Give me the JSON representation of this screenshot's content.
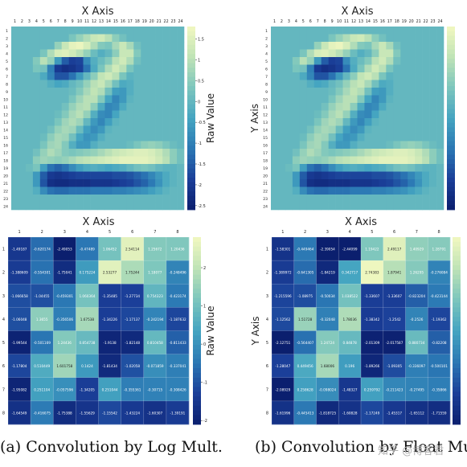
{
  "captions": {
    "a": "(a) Convolution by Log Mult.",
    "b": "(b) Convolution by Float Mult."
  },
  "watermark": "知乎 @博客君",
  "colors": {
    "c0": "#0b1f6e",
    "c1": "#1b3f99",
    "c2": "#2b78b4",
    "c3": "#45a5c1",
    "c4": "#7dc6bd",
    "c5": "#bfe3b6",
    "c6": "#f2f8c0"
  },
  "chart_data": [
    {
      "type": "heatmap",
      "panel": "a-top",
      "xlabel": "X Axis",
      "ylabel": "",
      "colorbar_label": "Raw Value",
      "x_ticks": [
        "1",
        "2",
        "3",
        "4",
        "5",
        "6",
        "7",
        "8",
        "9",
        "10",
        "11",
        "12",
        "13",
        "14",
        "15",
        "16",
        "17",
        "18",
        "19",
        "20",
        "21",
        "22",
        "23",
        "24"
      ],
      "y_ticks": [
        "1",
        "2",
        "3",
        "4",
        "5",
        "6",
        "7",
        "8",
        "9",
        "10",
        "11",
        "12",
        "13",
        "14",
        "15",
        "16",
        "17",
        "18",
        "19",
        "20",
        "21",
        "22",
        "23",
        "24"
      ],
      "colorbar_ticks": [
        "1.5",
        "1",
        "0.5",
        "0",
        "-0.5",
        "-1",
        "-1.5",
        "-2",
        "-2.5"
      ],
      "vmin": -2.6,
      "vmax": 1.8,
      "values": [
        [
          0,
          0,
          0,
          0,
          0,
          0,
          0,
          0,
          0,
          0,
          0,
          0,
          0,
          0,
          0,
          0,
          0,
          0,
          0,
          0,
          0,
          0,
          0,
          0
        ],
        [
          0,
          0,
          0,
          0,
          0,
          0,
          0,
          0,
          0.3,
          0.6,
          0.9,
          1.2,
          1.3,
          1.0,
          0.5,
          0.2,
          0,
          0,
          0,
          0,
          0,
          0,
          0,
          0
        ],
        [
          0,
          0,
          0,
          0,
          0,
          0,
          0.6,
          1.2,
          1.6,
          1.7,
          1.4,
          0.9,
          0.4,
          0.3,
          0.8,
          1.2,
          0.8,
          0.2,
          0,
          0,
          0,
          0,
          0,
          0
        ],
        [
          0,
          0,
          0,
          0,
          0.3,
          0.9,
          1.4,
          1.5,
          1.3,
          1.0,
          0.6,
          0.1,
          -0.2,
          0,
          0.5,
          1.2,
          1.2,
          0.4,
          0,
          0,
          0,
          0,
          0,
          0
        ],
        [
          0,
          0,
          0,
          0.4,
          1.0,
          0.6,
          -0.6,
          -1.5,
          -1.9,
          -1.8,
          -0.8,
          -0.2,
          0.1,
          0.4,
          1.0,
          1.3,
          0.9,
          0.2,
          0,
          0,
          0,
          0,
          0,
          0
        ],
        [
          0,
          0,
          0,
          0.3,
          0.2,
          -1.0,
          -2.0,
          -2.2,
          -2.1,
          -1.9,
          -1.2,
          -0.3,
          0.3,
          0.9,
          1.3,
          1.0,
          0.3,
          0,
          0,
          0,
          0,
          0,
          0,
          0
        ],
        [
          0,
          0,
          0,
          0,
          -0.3,
          -0.9,
          -1.6,
          -1.6,
          -1.2,
          -0.6,
          0,
          0.5,
          1.1,
          1.3,
          1.0,
          0.3,
          -0.1,
          0,
          0,
          0,
          0,
          0,
          0,
          0
        ],
        [
          0,
          0,
          0,
          0,
          0,
          -0.2,
          -0.4,
          -0.3,
          0,
          0.2,
          0.6,
          1.0,
          1.2,
          0.8,
          0.2,
          -0.3,
          -0.2,
          0,
          0,
          0,
          0,
          0,
          0,
          0
        ],
        [
          0,
          0,
          0,
          0,
          0,
          0,
          0,
          0,
          0.1,
          0.4,
          0.8,
          1.1,
          0.9,
          0.2,
          -0.5,
          -0.6,
          -0.2,
          0,
          0,
          0,
          0,
          0,
          0,
          0
        ],
        [
          0,
          0,
          0,
          0,
          0,
          0,
          0,
          0,
          0.3,
          0.7,
          1.0,
          1.0,
          0.4,
          -0.4,
          -0.9,
          -0.6,
          -0.1,
          0,
          0,
          0,
          0,
          0,
          0,
          0
        ],
        [
          0,
          0,
          0,
          0,
          0,
          0,
          0,
          0.2,
          0.6,
          0.9,
          1.0,
          0.5,
          -0.3,
          -0.9,
          -0.8,
          -0.3,
          0,
          0,
          0,
          0,
          0,
          0,
          0,
          0
        ],
        [
          0,
          0,
          0,
          0,
          0,
          0,
          0.1,
          0.4,
          0.8,
          1.0,
          0.6,
          -0.2,
          -0.8,
          -0.9,
          -0.4,
          0,
          0,
          0,
          0,
          0,
          0,
          0,
          0,
          0
        ],
        [
          0,
          0,
          0,
          0,
          0,
          0,
          0.3,
          0.7,
          0.9,
          0.7,
          0,
          -0.6,
          -0.9,
          -0.5,
          -0.1,
          0,
          0,
          0,
          0,
          0,
          0,
          0,
          0,
          0
        ],
        [
          0,
          0,
          0,
          0,
          0,
          0.2,
          0.6,
          0.8,
          0.7,
          0.1,
          -0.5,
          -0.8,
          -0.6,
          -0.1,
          0,
          0,
          0,
          0,
          0,
          0,
          0,
          0,
          0,
          0
        ],
        [
          0,
          0,
          0,
          0,
          0.1,
          0.5,
          0.8,
          0.7,
          0.2,
          -0.4,
          -0.7,
          -0.6,
          -0.2,
          0,
          0,
          0,
          0,
          0,
          0,
          0,
          0,
          0,
          0,
          0
        ],
        [
          0,
          0,
          0,
          0,
          0.3,
          0.7,
          0.8,
          0.4,
          -0.2,
          -0.6,
          -0.6,
          -0.2,
          0,
          0,
          0,
          0,
          0.1,
          0.3,
          0.5,
          0.6,
          0.5,
          0.3,
          0.1,
          0
        ],
        [
          0,
          0,
          0,
          0.2,
          0.6,
          0.9,
          0.7,
          0.4,
          0.3,
          0.4,
          0.5,
          0.6,
          0.8,
          1.0,
          1.2,
          1.3,
          1.4,
          1.5,
          1.5,
          1.4,
          1.2,
          0.9,
          0.5,
          0.2
        ],
        [
          0,
          0,
          0,
          0.5,
          0.7,
          0.6,
          0.5,
          0.6,
          0.8,
          1.0,
          1.1,
          1.2,
          1.3,
          1.4,
          1.5,
          1.6,
          1.6,
          1.6,
          1.6,
          1.5,
          1.3,
          1.0,
          0.5,
          0.2
        ],
        [
          0,
          0,
          0.1,
          0.3,
          -0.5,
          -1.2,
          -1.4,
          -1.2,
          -0.8,
          -0.5,
          -0.3,
          -0.2,
          -0.3,
          -0.4,
          -0.3,
          -0.2,
          0,
          0.2,
          0.3,
          0.2,
          0,
          -0.1,
          -0.1,
          0
        ],
        [
          0,
          0,
          0,
          -0.6,
          -1.5,
          -2.0,
          -2.1,
          -2.0,
          -1.9,
          -1.8,
          -1.8,
          -1.8,
          -1.8,
          -1.8,
          -1.7,
          -1.7,
          -1.6,
          -1.4,
          -1.2,
          -0.9,
          -0.6,
          -0.3,
          -0.1,
          0
        ],
        [
          0,
          0,
          0,
          -0.6,
          -1.6,
          -2.2,
          -2.3,
          -2.3,
          -2.2,
          -2.2,
          -2.2,
          -2.1,
          -2.1,
          -2.1,
          -2.0,
          -1.9,
          -1.8,
          -1.6,
          -1.4,
          -1.1,
          -0.7,
          -0.3,
          -0.1,
          0
        ],
        [
          0,
          0,
          0,
          -0.2,
          -0.8,
          -1.2,
          -1.3,
          -1.3,
          -1.2,
          -1.2,
          -1.2,
          -1.1,
          -1.1,
          -1.1,
          -1.0,
          -1.0,
          -0.9,
          -0.8,
          -0.7,
          -0.5,
          -0.3,
          -0.1,
          0,
          0
        ],
        [
          0,
          0,
          0,
          0,
          0,
          0,
          0,
          0,
          0,
          0,
          0,
          0,
          0,
          0,
          0,
          0,
          0,
          0,
          0,
          0,
          0,
          0,
          0,
          0
        ],
        [
          0,
          0,
          0,
          0,
          0,
          0,
          0,
          0,
          0,
          0,
          0,
          0,
          0,
          0,
          0,
          0,
          0,
          0,
          0,
          0,
          0,
          0,
          0,
          0
        ]
      ]
    },
    {
      "type": "heatmap",
      "panel": "b-top",
      "xlabel": "X Axis",
      "ylabel": "Y Axis",
      "colorbar_label": "",
      "x_ticks": [
        "1",
        "2",
        "3",
        "4",
        "5",
        "6",
        "7",
        "8",
        "9",
        "10",
        "11",
        "12",
        "13",
        "14",
        "15",
        "16",
        "17",
        "18",
        "19",
        "20",
        "21",
        "22",
        "23",
        "24"
      ],
      "y_ticks": [
        "1",
        "2",
        "3",
        "4",
        "5",
        "6",
        "7",
        "8",
        "9",
        "10",
        "11",
        "12",
        "13",
        "14",
        "15",
        "16",
        "17",
        "18",
        "19",
        "20",
        "21",
        "22",
        "23",
        "24"
      ],
      "vmin": -2.6,
      "vmax": 1.8,
      "values_same_as": "a-top"
    },
    {
      "type": "heatmap",
      "panel": "a-bottom",
      "xlabel": "X Axis",
      "ylabel": "",
      "colorbar_label": "Raw Value",
      "x_ticks": [
        "1",
        "2",
        "3",
        "4",
        "5",
        "6",
        "7",
        "8"
      ],
      "y_ticks": [
        "1",
        "2",
        "3",
        "4",
        "5",
        "6",
        "7",
        "8"
      ],
      "colorbar_ticks": [
        "2",
        "1",
        "0",
        "-1",
        "-2"
      ],
      "vmin": -2.1,
      "vmax": 2.8,
      "values": [
        [
          -1.49187,
          -0.620174,
          -2.49053,
          -0.47489,
          1.06452,
          2.54114,
          1.25672,
          1.20436
        ],
        [
          -1.388609,
          -0.554301,
          -1.75041,
          0.175224,
          2.53277,
          1.75244,
          1.18077,
          -0.248496
        ],
        [
          -1.066658,
          -1.04455,
          -0.459301,
          1.060364,
          -1.35485,
          -1.27734,
          0.754323,
          -0.423174
        ],
        [
          -1.06048,
          1.3655,
          -0.356506,
          1.67538,
          -1.34226,
          -1.17137,
          -0.242194,
          -1.187632
        ],
        [
          -1.99544,
          -0.501169,
          1.24436,
          0.854738,
          -1.9138,
          -1.82148,
          0.810458,
          -0.811433
        ],
        [
          -1.17804,
          0.510449,
          1.601758,
          0.1424,
          -1.81434,
          -1.02058,
          -0.071859,
          -0.337041
        ],
        [
          -1.95082,
          0.251104,
          -0.057596,
          -1.34205,
          0.251044,
          -0.355361,
          -0.30715,
          -0.308426
        ],
        [
          -1.64549,
          -0.416075,
          -1.75388,
          -1.55629,
          -1.15542,
          -1.43224,
          -1.60307,
          -1.39191
        ]
      ]
    },
    {
      "type": "heatmap",
      "panel": "b-bottom",
      "xlabel": "X Axis",
      "ylabel": "Y Axis",
      "colorbar_label": "",
      "x_ticks": [
        "1",
        "2",
        "3",
        "4",
        "5",
        "6",
        "7",
        "8"
      ],
      "y_ticks": [
        "1",
        "2",
        "3",
        "4",
        "5",
        "6",
        "7",
        "8"
      ],
      "vmin": -2.1,
      "vmax": 2.8,
      "values": [
        [
          -1.58301,
          -0.449464,
          -2.39054,
          -2.44099,
          1.19422,
          2.49117,
          1.40929,
          1.28791
        ],
        [
          -1.389972,
          -0.641305,
          -1.84219,
          0.342717,
          2.74383,
          1.87941,
          1.26295,
          -0.276084
        ],
        [
          -1.215596,
          -1.08975,
          -0.50034,
          1.038522,
          -1.33607,
          -1.33607,
          -0.823204,
          -0.423144
        ],
        [
          -1.12562,
          1.51728,
          -0.32048,
          1.78036,
          -1.38342,
          -1.2542,
          -0.2526,
          -1.19362
        ],
        [
          -2.12751,
          -0.564407,
          1.24724,
          0.84878,
          -2.01309,
          -2.017587,
          0.880734,
          -0.82208
        ],
        [
          -1.28047,
          0.449456,
          1.68006,
          0.196,
          -1.89266,
          -1.09305,
          -0.336097,
          -0.500101
        ],
        [
          -2.08929,
          0.258628,
          -0.098024,
          -1.48327,
          0.259792,
          -0.211423,
          -0.27495,
          -0.35866
        ],
        [
          -1.61996,
          -0.445413,
          -1.818725,
          -1.60828,
          -1.17249,
          -1.45317,
          -1.65112,
          -1.71559
        ]
      ]
    }
  ]
}
